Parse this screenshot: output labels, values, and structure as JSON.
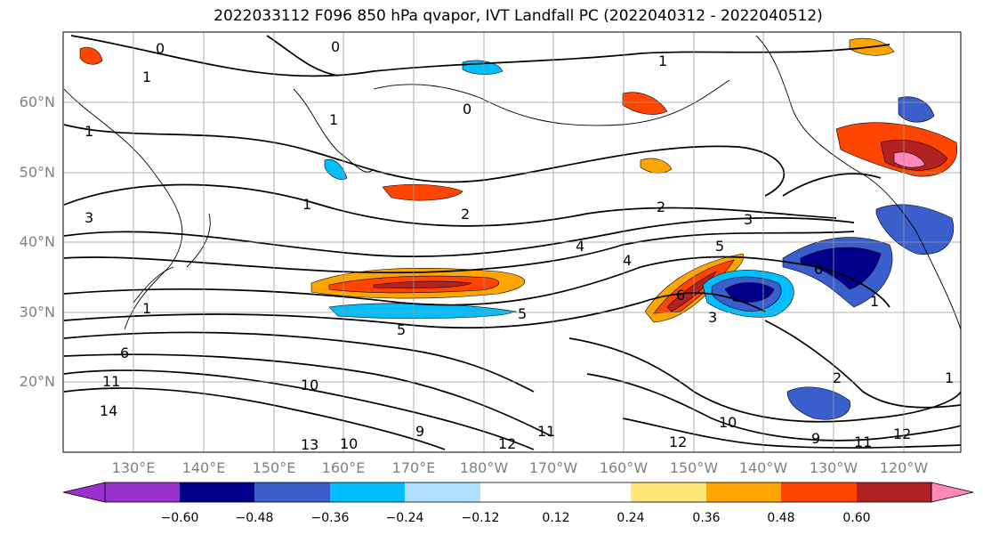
{
  "title": "2022033112 F096 850 hPa qvapor, IVT Landfall PC (2022040312 - 2022040512)",
  "map": {
    "lat_ticks": [
      "20°N",
      "30°N",
      "40°N",
      "50°N",
      "60°N"
    ],
    "lon_ticks": [
      "130°E",
      "140°E",
      "150°E",
      "160°E",
      "170°E",
      "180°W",
      "170°W",
      "160°W",
      "150°W",
      "140°W",
      "130°W",
      "120°W"
    ],
    "contour_labels": [
      "0",
      "0",
      "1",
      "0",
      "1",
      "1",
      "1",
      "3",
      "1",
      "2",
      "2",
      "3",
      "4",
      "5",
      "4",
      "6",
      "5",
      "6",
      "5",
      "3",
      "2",
      "1",
      "1",
      "6",
      "11",
      "14",
      "10",
      "9",
      "12",
      "11",
      "12",
      "10",
      "13",
      "9",
      "11",
      "12",
      "10",
      "1"
    ]
  },
  "colorbar": {
    "tick_labels": [
      "−0.60",
      "−0.48",
      "−0.36",
      "−0.24",
      "−0.12",
      "0.12",
      "0.24",
      "0.36",
      "0.48",
      "0.60"
    ],
    "low_color": "#9932cc",
    "high_color": "#ff88b8",
    "bin_colors": [
      "#00008b",
      "#3a5fcd",
      "#00bfff",
      "#b0e0ff",
      "#ffffff",
      "#ffffff",
      "#ffe77e",
      "#ffa500",
      "#ff4500",
      "#b22222"
    ]
  },
  "colors": {
    "land_line": "#000000",
    "grid_line": "#999999",
    "axis_label": "#808080"
  }
}
